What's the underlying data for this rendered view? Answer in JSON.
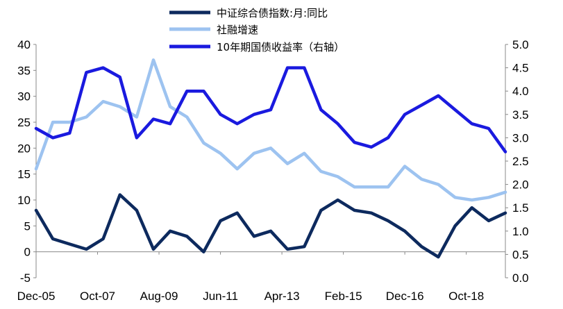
{
  "chart_data": {
    "type": "line",
    "title": "",
    "xlabel": "",
    "ylabel": "",
    "x_tick_labels": [
      "Dec-05",
      "Oct-07",
      "Aug-09",
      "Jun-11",
      "Apr-13",
      "Feb-15",
      "Dec-16",
      "Oct-18"
    ],
    "left_axis": {
      "ylim": [
        -5,
        40
      ],
      "ticks": [
        "-5",
        "0",
        "5",
        "10",
        "15",
        "20",
        "25",
        "30",
        "35",
        "40"
      ]
    },
    "right_axis": {
      "ylim": [
        0.0,
        5.0
      ],
      "ticks": [
        "0.0",
        "0.5",
        "1.0",
        "1.5",
        "2.0",
        "2.5",
        "3.0",
        "3.5",
        "4.0",
        "4.5",
        "5.0"
      ]
    },
    "grid": false,
    "legend_position": "top",
    "x_dates": [
      "2005-12",
      "2006-06",
      "2006-12",
      "2007-06",
      "2007-12",
      "2008-06",
      "2008-12",
      "2009-06",
      "2009-12",
      "2010-06",
      "2010-12",
      "2011-06",
      "2011-12",
      "2012-06",
      "2012-12",
      "2013-06",
      "2013-12",
      "2014-06",
      "2014-12",
      "2015-06",
      "2015-12",
      "2016-06",
      "2016-12",
      "2017-06",
      "2017-12",
      "2018-06",
      "2018-12",
      "2019-06",
      "2019-12"
    ],
    "series": [
      {
        "name": "中证综合债指数:月:同比",
        "axis": "left",
        "color": "#0d2a5e",
        "values": [
          8.0,
          2.5,
          1.5,
          0.5,
          2.5,
          11.0,
          8.0,
          0.5,
          4.0,
          3.0,
          0.0,
          6.0,
          7.5,
          3.0,
          4.0,
          0.5,
          1.0,
          8.0,
          10.0,
          8.0,
          7.5,
          6.0,
          4.0,
          1.0,
          -1.0,
          5.0,
          8.5,
          6.0,
          7.5
        ]
      },
      {
        "name": "社融增速",
        "axis": "left",
        "color": "#9dc3f0",
        "values": [
          16.0,
          25.0,
          25.0,
          26.0,
          29.0,
          28.0,
          26.0,
          37.0,
          28.0,
          26.0,
          21.0,
          19.0,
          16.0,
          19.0,
          20.0,
          17.0,
          19.0,
          15.5,
          14.5,
          12.5,
          12.5,
          12.5,
          16.5,
          14.0,
          13.0,
          10.5,
          10.0,
          10.5,
          11.5
        ]
      },
      {
        "name": "10年期国债收益率（右轴）",
        "axis": "right",
        "color": "#1a1adf",
        "values": [
          3.2,
          3.0,
          3.1,
          4.4,
          4.5,
          4.3,
          3.0,
          3.4,
          3.3,
          4.0,
          4.0,
          3.5,
          3.3,
          3.5,
          3.6,
          4.5,
          4.5,
          3.6,
          3.3,
          2.9,
          2.8,
          3.0,
          3.5,
          3.7,
          3.9,
          3.6,
          3.3,
          3.2,
          2.7
        ]
      }
    ]
  }
}
